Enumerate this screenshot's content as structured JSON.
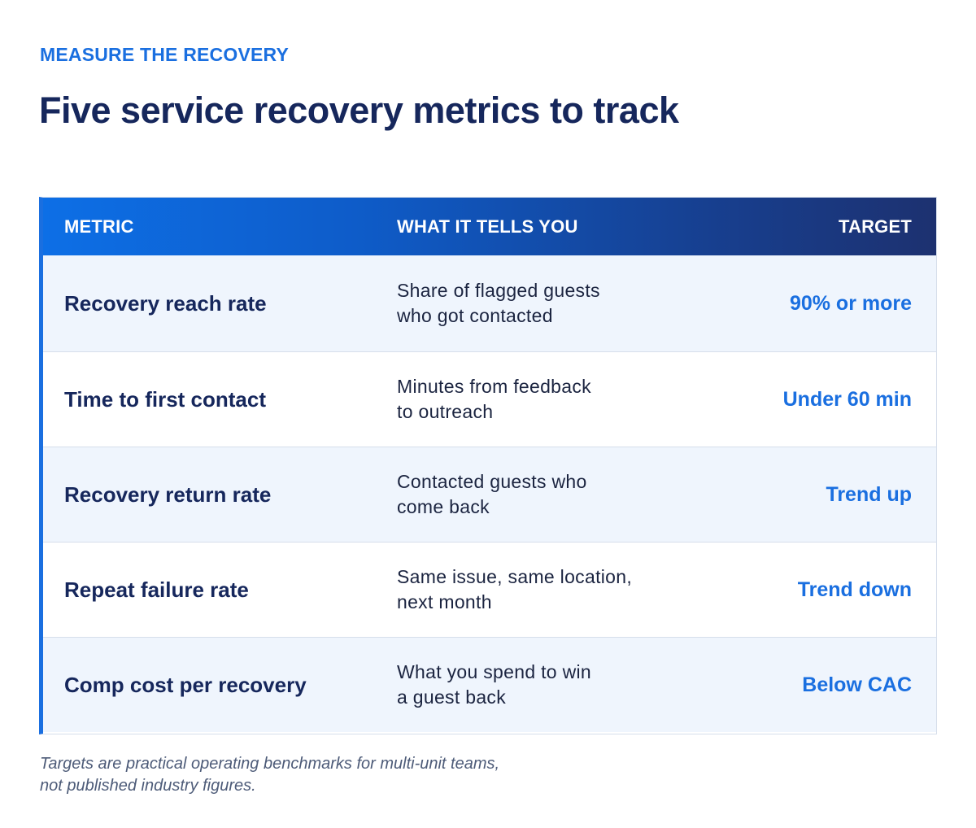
{
  "eyebrow": "MEASURE THE RECOVERY",
  "title": "Five service recovery metrics to track",
  "table": {
    "headers": {
      "metric": "METRIC",
      "what": "WHAT IT TELLS YOU",
      "target": "TARGET"
    },
    "rows": [
      {
        "metric": "Recovery reach rate",
        "what_line1": "Share of flagged guests",
        "what_line2": "who got contacted",
        "target": "90% or more"
      },
      {
        "metric": "Time to first contact",
        "what_line1": "Minutes from feedback",
        "what_line2": "to outreach",
        "target": "Under 60 min"
      },
      {
        "metric": "Recovery return rate",
        "what_line1": "Contacted guests who",
        "what_line2": "come back",
        "target": "Trend up"
      },
      {
        "metric": "Repeat failure rate",
        "what_line1": "Same issue, same location,",
        "what_line2": "next month",
        "target": "Trend down"
      },
      {
        "metric": "Comp cost per recovery",
        "what_line1": "What you spend to win",
        "what_line2": "a guest back",
        "target": "Below CAC"
      }
    ]
  },
  "footnote": {
    "line1": "Targets are practical operating benchmarks for multi-unit teams,",
    "line2": "not published industry figures."
  },
  "colors": {
    "accent": "#1a6fe0",
    "title": "#16275c",
    "header_gradient_start": "#0d6fe6",
    "header_gradient_end": "#1d3170",
    "row_alt": "#eff5fd"
  }
}
